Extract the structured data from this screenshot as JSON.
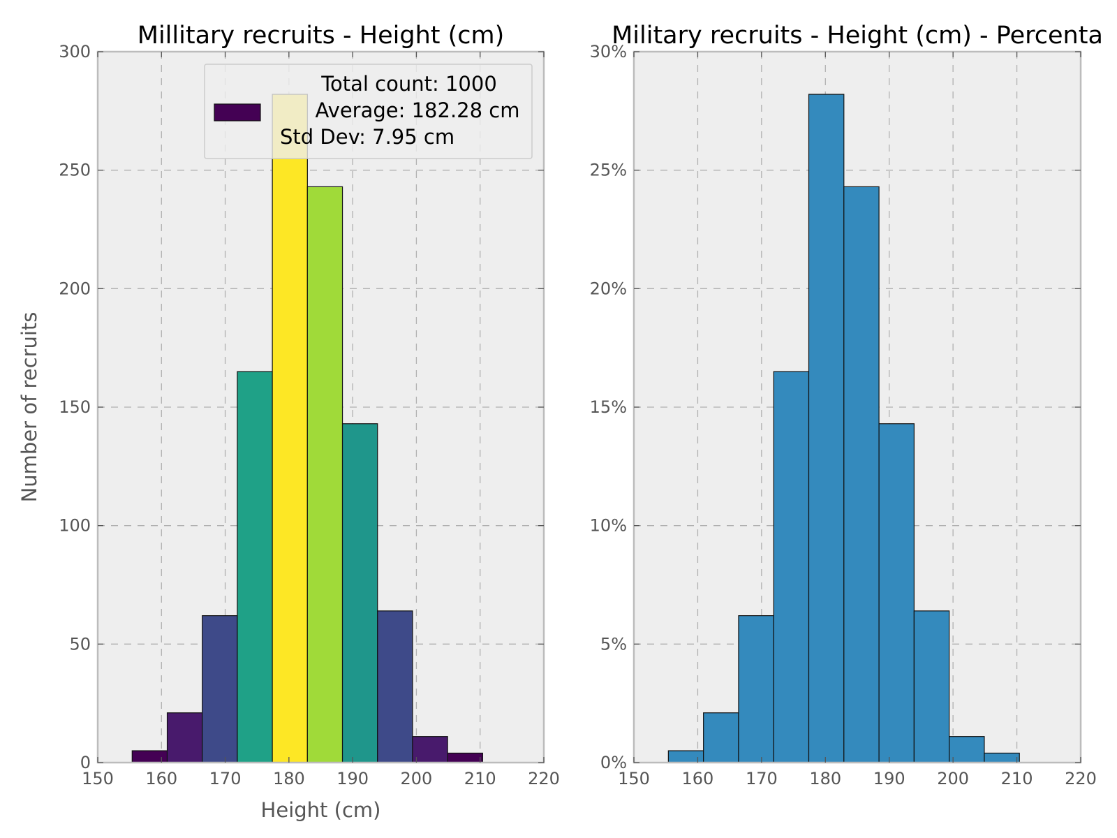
{
  "chart_data": [
    {
      "type": "bar",
      "title": "Millitary recruits - Height (cm)",
      "xlabel": "Height (cm)",
      "ylabel": "Number of recruits",
      "xlim": [
        150,
        220
      ],
      "ylim": [
        0,
        300
      ],
      "x_ticks": [
        "150",
        "160",
        "170",
        "180",
        "190",
        "200",
        "210",
        "220"
      ],
      "y_ticks": [
        "0",
        "50",
        "100",
        "150",
        "200",
        "250",
        "300"
      ],
      "bin_edges": [
        155.4,
        160.9,
        166.4,
        171.9,
        177.4,
        182.9,
        188.4,
        193.9,
        199.4,
        204.9,
        210.4
      ],
      "values": [
        5,
        21,
        62,
        165,
        282,
        243,
        143,
        64,
        11,
        4
      ],
      "bar_colors": [
        "#440154",
        "#481a6c",
        "#3e4a89",
        "#1fa187",
        "#fde725",
        "#a0da39",
        "#1f968b",
        "#3e4a89",
        "#481a6c",
        "#440154"
      ],
      "grid": true,
      "background": "#eeeeee",
      "legend": {
        "placement": "upper-right",
        "swatch_color": "#440154",
        "lines": [
          "Total count: 1000",
          "Average: 182.28 cm",
          "Std Dev: 7.95 cm"
        ]
      }
    },
    {
      "type": "bar",
      "title": "Military recruits - Height (cm) - Percenta",
      "xlabel": "",
      "ylabel": "",
      "xlim": [
        150,
        220
      ],
      "ylim": [
        0,
        30
      ],
      "x_ticks": [
        "150",
        "160",
        "170",
        "180",
        "190",
        "200",
        "210",
        "220"
      ],
      "y_ticks": [
        "0%",
        "5%",
        "10%",
        "15%",
        "20%",
        "25%",
        "30%"
      ],
      "bin_edges": [
        155.4,
        160.9,
        166.4,
        171.9,
        177.4,
        182.9,
        188.4,
        193.9,
        199.4,
        204.9,
        210.4
      ],
      "values": [
        0.5,
        2.1,
        6.2,
        16.5,
        28.2,
        24.3,
        14.3,
        6.4,
        1.1,
        0.4
      ],
      "bar_color": "#348abd",
      "grid": true,
      "background": "#eeeeee"
    }
  ]
}
